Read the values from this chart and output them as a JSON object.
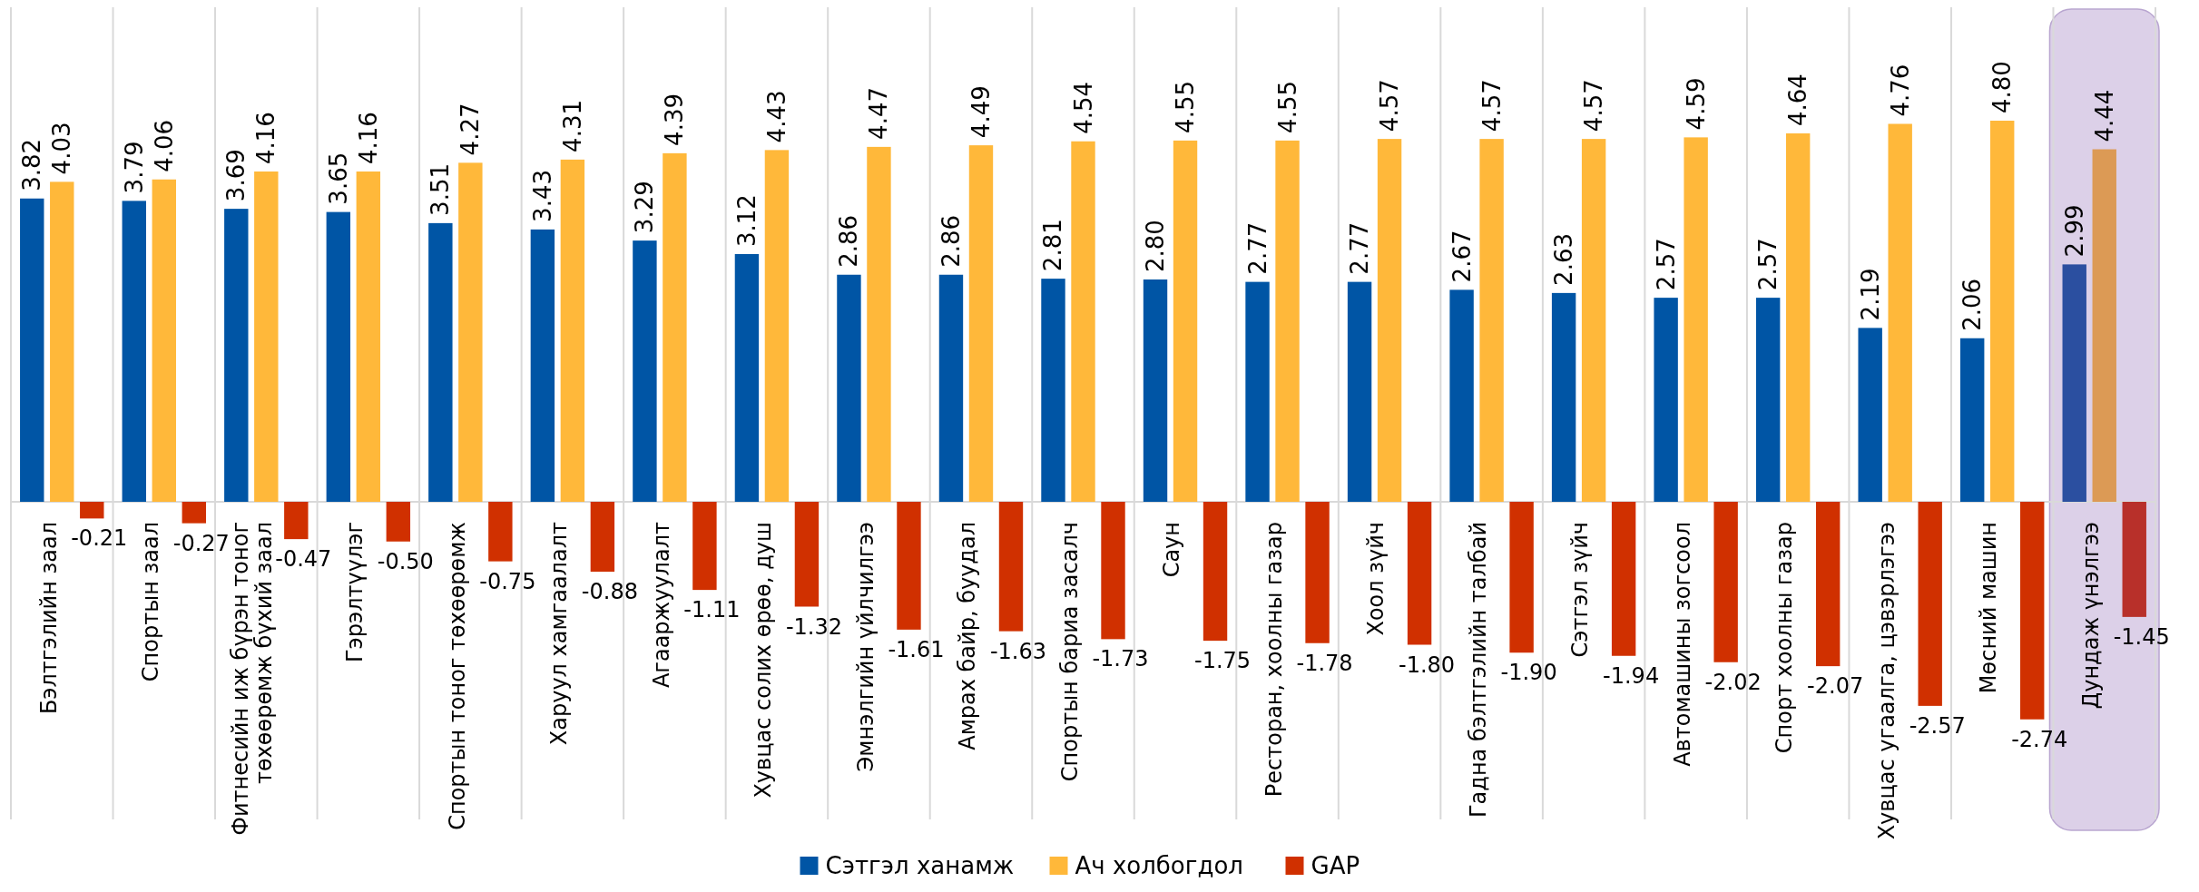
{
  "chart_data": {
    "type": "bar",
    "categories": [
      "Бэлтгэлийн заал",
      "Спортын заал",
      "Фитнесийн иж бүрэн тоног төхөөрөмж бүхий заал",
      "Гэрэлтүүлэг",
      "Спортын тоног төхөөрөмж",
      "Харуул хамгаалалт",
      "Агааржуулалт",
      "Хувцас солих өрөө, душ",
      "Эмнэлгийн үйлчилгээ",
      "Амрах байр, буудал",
      "Спортын бариа засалч",
      "Саун",
      "Ресторан, хоолны газар",
      "Хоол зүйч",
      "Гадна бэлтгэлийн талбай",
      "Сэтгэл зүйч",
      "Автомашины зогсоол",
      "Спорт хоолны газар",
      "Хувцас угаалга, цэвэрлэгээ",
      "Мөсний машин",
      "Дундаж үнэлгээ"
    ],
    "series": [
      {
        "name": "Сэтгэл ханамж",
        "color": "#0055a5",
        "colors": [
          "#0055a5",
          "#0055a5",
          "#0055a5",
          "#0055a5",
          "#0055a5",
          "#0055a5",
          "#0055a5",
          "#0055a5",
          "#0055a5",
          "#0055a5",
          "#0055a5",
          "#0055a5",
          "#0055a5",
          "#0055a5",
          "#0055a5",
          "#0055a5",
          "#0055a5",
          "#0055a5",
          "#0055a5",
          "#0055a5",
          "#2b4fa0"
        ],
        "values": [
          3.82,
          3.79,
          3.69,
          3.65,
          3.51,
          3.43,
          3.29,
          3.12,
          2.86,
          2.86,
          2.81,
          2.8,
          2.77,
          2.77,
          2.67,
          2.63,
          2.57,
          2.57,
          2.19,
          2.06,
          2.99
        ],
        "value_labels": [
          "3.82",
          "3.79",
          "3.69",
          "3.65",
          "3.51",
          "3.43",
          "3.29",
          "3.12",
          "2.86",
          "2.86",
          "2.81",
          "2.80",
          "2.77",
          "2.77",
          "2.67",
          "2.63",
          "2.57",
          "2.57",
          "2.19",
          "2.06",
          "2.99"
        ]
      },
      {
        "name": "Ач холбогдол",
        "color": "#ffb83a",
        "colors": [
          "#ffb83a",
          "#ffb83a",
          "#ffb83a",
          "#ffb83a",
          "#ffb83a",
          "#ffb83a",
          "#ffb83a",
          "#ffb83a",
          "#ffb83a",
          "#ffb83a",
          "#ffb83a",
          "#ffb83a",
          "#ffb83a",
          "#ffb83a",
          "#ffb83a",
          "#ffb83a",
          "#ffb83a",
          "#ffb83a",
          "#ffb83a",
          "#ffb83a",
          "#dc9a55"
        ],
        "values": [
          4.03,
          4.06,
          4.16,
          4.16,
          4.27,
          4.31,
          4.39,
          4.43,
          4.47,
          4.49,
          4.54,
          4.55,
          4.55,
          4.57,
          4.57,
          4.57,
          4.59,
          4.64,
          4.76,
          4.8,
          4.44
        ],
        "value_labels": [
          "4.03",
          "4.06",
          "4.16",
          "4.16",
          "4.27",
          "4.31",
          "4.39",
          "4.43",
          "4.47",
          "4.49",
          "4.54",
          "4.55",
          "4.55",
          "4.57",
          "4.57",
          "4.57",
          "4.59",
          "4.64",
          "4.76",
          "4.80",
          "4.44"
        ]
      },
      {
        "name": "GAP",
        "color": "#d03000",
        "colors": [
          "#d03000",
          "#d03000",
          "#d03000",
          "#d03000",
          "#d03000",
          "#d03000",
          "#d03000",
          "#d03000",
          "#d03000",
          "#d03000",
          "#d03000",
          "#d03000",
          "#d03000",
          "#d03000",
          "#d03000",
          "#d03000",
          "#d03000",
          "#d03000",
          "#d03000",
          "#d03000",
          "#b8302a"
        ],
        "values": [
          -0.21,
          -0.27,
          -0.47,
          -0.5,
          -0.75,
          -0.88,
          -1.11,
          -1.32,
          -1.61,
          -1.63,
          -1.73,
          -1.75,
          -1.78,
          -1.8,
          -1.9,
          -1.94,
          -2.02,
          -2.07,
          -2.57,
          -2.74,
          -1.45
        ],
        "value_labels": [
          "-0.21",
          "-0.27",
          "-0.47",
          "-0.50",
          "-0.75",
          "-0.88",
          "-1.11",
          "-1.32",
          "-1.61",
          "-1.63",
          "-1.73",
          "-1.75",
          "-1.78",
          "-1.80",
          "-1.90",
          "-1.94",
          "-2.02",
          "-2.07",
          "-2.57",
          "-2.74",
          "-1.45"
        ]
      }
    ],
    "bands": [
      {
        "axis": "x",
        "from": "Дундаж үнэлгээ",
        "to": "Дундаж үнэлгээ",
        "color": "#dcd0e8"
      }
    ],
    "grid": "x",
    "legend": "bottom"
  }
}
